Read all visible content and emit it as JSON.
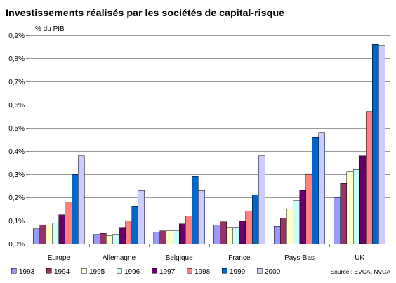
{
  "chart_data": {
    "type": "bar",
    "title": "Investissements réalisés par les sociétés de capital-risque",
    "ylabel": "% du PIB",
    "source": "Source : EVCA, NVCA",
    "categories": [
      "Europe",
      "Allemagne",
      "Belgique",
      "France",
      "Pays-Bas",
      "UK"
    ],
    "series": [
      {
        "name": "1993",
        "color": "#9999FF",
        "values": [
          0.065,
          0.04,
          0.05,
          0.08,
          0.075,
          0.2
        ]
      },
      {
        "name": "1994",
        "color": "#993366",
        "values": [
          0.08,
          0.045,
          0.055,
          0.095,
          0.11,
          0.26
        ]
      },
      {
        "name": "1995",
        "color": "#FFFFCC",
        "values": [
          0.08,
          0.035,
          0.055,
          0.07,
          0.15,
          0.31
        ]
      },
      {
        "name": "1996",
        "color": "#CCFFFF",
        "values": [
          0.09,
          0.04,
          0.055,
          0.07,
          0.185,
          0.32
        ]
      },
      {
        "name": "1997",
        "color": "#660066",
        "values": [
          0.125,
          0.07,
          0.085,
          0.1,
          0.23,
          0.38
        ]
      },
      {
        "name": "1998",
        "color": "#FF8080",
        "values": [
          0.18,
          0.1,
          0.12,
          0.14,
          0.3,
          0.57
        ]
      },
      {
        "name": "1999",
        "color": "#0066CC",
        "values": [
          0.3,
          0.16,
          0.29,
          0.21,
          0.46,
          0.86
        ]
      },
      {
        "name": "2000",
        "color": "#CCCCFF",
        "values": [
          0.38,
          0.23,
          0.23,
          0.38,
          0.48,
          0.855
        ]
      }
    ],
    "ylim": [
      0,
      0.9
    ],
    "yticks": [
      0,
      0.1,
      0.2,
      0.3,
      0.4,
      0.5,
      0.6,
      0.7,
      0.8,
      0.9
    ],
    "ytick_labels": [
      "0,0%",
      "0,1%",
      "0,2%",
      "0,3%",
      "0,4%",
      "0,5%",
      "0,6%",
      "0,7%",
      "0,8%",
      "0,9%"
    ],
    "grid": true,
    "legend": "bottom"
  }
}
